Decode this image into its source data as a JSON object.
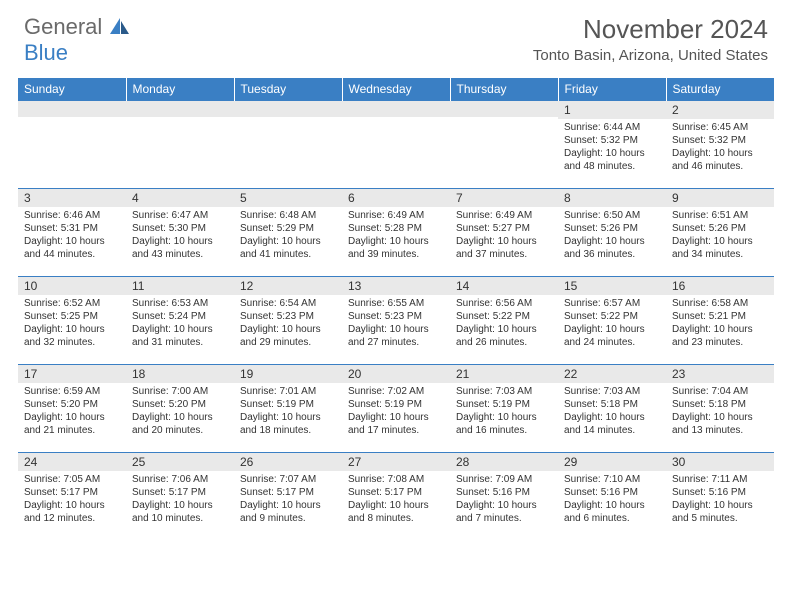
{
  "logo": {
    "general": "General",
    "blue": "Blue"
  },
  "title": "November 2024",
  "location": "Tonto Basin, Arizona, United States",
  "colors": {
    "header_bg": "#3a7fc4",
    "header_text": "#ffffff",
    "daynum_bg": "#e9e9e9",
    "border": "#3a7fc4",
    "text": "#333333",
    "logo_gray": "#6a6a6a",
    "logo_blue": "#3a7fc4"
  },
  "day_headers": [
    "Sunday",
    "Monday",
    "Tuesday",
    "Wednesday",
    "Thursday",
    "Friday",
    "Saturday"
  ],
  "weeks": [
    [
      {
        "n": "",
        "sr": "",
        "ss": "",
        "dl": ""
      },
      {
        "n": "",
        "sr": "",
        "ss": "",
        "dl": ""
      },
      {
        "n": "",
        "sr": "",
        "ss": "",
        "dl": ""
      },
      {
        "n": "",
        "sr": "",
        "ss": "",
        "dl": ""
      },
      {
        "n": "",
        "sr": "",
        "ss": "",
        "dl": ""
      },
      {
        "n": "1",
        "sr": "Sunrise: 6:44 AM",
        "ss": "Sunset: 5:32 PM",
        "dl": "Daylight: 10 hours and 48 minutes."
      },
      {
        "n": "2",
        "sr": "Sunrise: 6:45 AM",
        "ss": "Sunset: 5:32 PM",
        "dl": "Daylight: 10 hours and 46 minutes."
      }
    ],
    [
      {
        "n": "3",
        "sr": "Sunrise: 6:46 AM",
        "ss": "Sunset: 5:31 PM",
        "dl": "Daylight: 10 hours and 44 minutes."
      },
      {
        "n": "4",
        "sr": "Sunrise: 6:47 AM",
        "ss": "Sunset: 5:30 PM",
        "dl": "Daylight: 10 hours and 43 minutes."
      },
      {
        "n": "5",
        "sr": "Sunrise: 6:48 AM",
        "ss": "Sunset: 5:29 PM",
        "dl": "Daylight: 10 hours and 41 minutes."
      },
      {
        "n": "6",
        "sr": "Sunrise: 6:49 AM",
        "ss": "Sunset: 5:28 PM",
        "dl": "Daylight: 10 hours and 39 minutes."
      },
      {
        "n": "7",
        "sr": "Sunrise: 6:49 AM",
        "ss": "Sunset: 5:27 PM",
        "dl": "Daylight: 10 hours and 37 minutes."
      },
      {
        "n": "8",
        "sr": "Sunrise: 6:50 AM",
        "ss": "Sunset: 5:26 PM",
        "dl": "Daylight: 10 hours and 36 minutes."
      },
      {
        "n": "9",
        "sr": "Sunrise: 6:51 AM",
        "ss": "Sunset: 5:26 PM",
        "dl": "Daylight: 10 hours and 34 minutes."
      }
    ],
    [
      {
        "n": "10",
        "sr": "Sunrise: 6:52 AM",
        "ss": "Sunset: 5:25 PM",
        "dl": "Daylight: 10 hours and 32 minutes."
      },
      {
        "n": "11",
        "sr": "Sunrise: 6:53 AM",
        "ss": "Sunset: 5:24 PM",
        "dl": "Daylight: 10 hours and 31 minutes."
      },
      {
        "n": "12",
        "sr": "Sunrise: 6:54 AM",
        "ss": "Sunset: 5:23 PM",
        "dl": "Daylight: 10 hours and 29 minutes."
      },
      {
        "n": "13",
        "sr": "Sunrise: 6:55 AM",
        "ss": "Sunset: 5:23 PM",
        "dl": "Daylight: 10 hours and 27 minutes."
      },
      {
        "n": "14",
        "sr": "Sunrise: 6:56 AM",
        "ss": "Sunset: 5:22 PM",
        "dl": "Daylight: 10 hours and 26 minutes."
      },
      {
        "n": "15",
        "sr": "Sunrise: 6:57 AM",
        "ss": "Sunset: 5:22 PM",
        "dl": "Daylight: 10 hours and 24 minutes."
      },
      {
        "n": "16",
        "sr": "Sunrise: 6:58 AM",
        "ss": "Sunset: 5:21 PM",
        "dl": "Daylight: 10 hours and 23 minutes."
      }
    ],
    [
      {
        "n": "17",
        "sr": "Sunrise: 6:59 AM",
        "ss": "Sunset: 5:20 PM",
        "dl": "Daylight: 10 hours and 21 minutes."
      },
      {
        "n": "18",
        "sr": "Sunrise: 7:00 AM",
        "ss": "Sunset: 5:20 PM",
        "dl": "Daylight: 10 hours and 20 minutes."
      },
      {
        "n": "19",
        "sr": "Sunrise: 7:01 AM",
        "ss": "Sunset: 5:19 PM",
        "dl": "Daylight: 10 hours and 18 minutes."
      },
      {
        "n": "20",
        "sr": "Sunrise: 7:02 AM",
        "ss": "Sunset: 5:19 PM",
        "dl": "Daylight: 10 hours and 17 minutes."
      },
      {
        "n": "21",
        "sr": "Sunrise: 7:03 AM",
        "ss": "Sunset: 5:19 PM",
        "dl": "Daylight: 10 hours and 16 minutes."
      },
      {
        "n": "22",
        "sr": "Sunrise: 7:03 AM",
        "ss": "Sunset: 5:18 PM",
        "dl": "Daylight: 10 hours and 14 minutes."
      },
      {
        "n": "23",
        "sr": "Sunrise: 7:04 AM",
        "ss": "Sunset: 5:18 PM",
        "dl": "Daylight: 10 hours and 13 minutes."
      }
    ],
    [
      {
        "n": "24",
        "sr": "Sunrise: 7:05 AM",
        "ss": "Sunset: 5:17 PM",
        "dl": "Daylight: 10 hours and 12 minutes."
      },
      {
        "n": "25",
        "sr": "Sunrise: 7:06 AM",
        "ss": "Sunset: 5:17 PM",
        "dl": "Daylight: 10 hours and 10 minutes."
      },
      {
        "n": "26",
        "sr": "Sunrise: 7:07 AM",
        "ss": "Sunset: 5:17 PM",
        "dl": "Daylight: 10 hours and 9 minutes."
      },
      {
        "n": "27",
        "sr": "Sunrise: 7:08 AM",
        "ss": "Sunset: 5:17 PM",
        "dl": "Daylight: 10 hours and 8 minutes."
      },
      {
        "n": "28",
        "sr": "Sunrise: 7:09 AM",
        "ss": "Sunset: 5:16 PM",
        "dl": "Daylight: 10 hours and 7 minutes."
      },
      {
        "n": "29",
        "sr": "Sunrise: 7:10 AM",
        "ss": "Sunset: 5:16 PM",
        "dl": "Daylight: 10 hours and 6 minutes."
      },
      {
        "n": "30",
        "sr": "Sunrise: 7:11 AM",
        "ss": "Sunset: 5:16 PM",
        "dl": "Daylight: 10 hours and 5 minutes."
      }
    ]
  ]
}
